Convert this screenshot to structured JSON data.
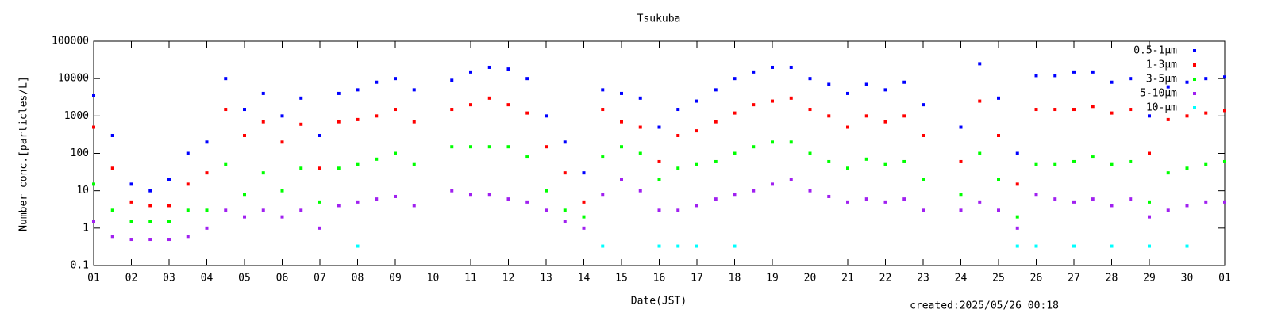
{
  "chart_data": {
    "type": "scatter",
    "title": "Tsukuba",
    "xlabel": "Date(JST)",
    "ylabel": "Number conc.[particles/L]",
    "annotation": "created:2025/05/26 00:18",
    "log_y": true,
    "legend": "upper right",
    "xlim": [
      1,
      31
    ],
    "ylim": [
      0.1,
      100000
    ],
    "xticks": [
      {
        "value": 1,
        "label": "01"
      },
      {
        "value": 2,
        "label": "02"
      },
      {
        "value": 3,
        "label": "03"
      },
      {
        "value": 4,
        "label": "04"
      },
      {
        "value": 5,
        "label": "05"
      },
      {
        "value": 6,
        "label": "06"
      },
      {
        "value": 7,
        "label": "07"
      },
      {
        "value": 8,
        "label": "08"
      },
      {
        "value": 9,
        "label": "09"
      },
      10,
      11,
      12,
      13,
      14,
      15,
      16,
      17,
      18,
      19,
      20,
      21,
      22,
      23,
      24,
      25,
      26,
      27,
      28,
      29,
      30,
      {
        "value": 31,
        "label": "01"
      }
    ],
    "yticks": [
      0.1,
      1,
      10,
      100,
      1000,
      10000,
      100000
    ],
    "x": [
      1,
      1.5,
      2,
      2.5,
      3,
      3.5,
      4,
      4.5,
      5,
      5.5,
      6,
      6.5,
      7,
      7.5,
      8,
      8.5,
      9,
      9.5,
      10,
      10.5,
      11,
      11.5,
      12,
      12.5,
      13,
      13.5,
      14,
      14.5,
      15,
      15.5,
      16,
      16.5,
      17,
      17.5,
      18,
      18.5,
      19,
      19.5,
      20,
      20.5,
      21,
      21.5,
      22,
      22.5,
      23,
      23.5,
      24,
      24.5,
      25,
      25.5,
      26,
      26.5,
      27,
      27.5,
      28,
      28.5,
      29,
      29.5,
      30,
      30.5,
      31
    ],
    "series": [
      {
        "name": "0.5-1μm",
        "color": "#0000ff",
        "values": [
          3500,
          300,
          15,
          10,
          20,
          100,
          200,
          10000,
          1500,
          4000,
          1000,
          3000,
          300,
          4000,
          5000,
          8000,
          10000,
          5000,
          null,
          9000,
          15000,
          20000,
          18000,
          10000,
          1000,
          200,
          30,
          5000,
          4000,
          3000,
          500,
          1500,
          2500,
          5000,
          10000,
          15000,
          20000,
          20000,
          10000,
          7000,
          4000,
          7000,
          5000,
          8000,
          2000,
          null,
          500,
          25000,
          3000,
          100,
          12000,
          12000,
          15000,
          15000,
          8000,
          10000,
          1000,
          6000,
          8000,
          10000,
          11000
        ]
      },
      {
        "name": "1-3μm",
        "color": "#ff0000",
        "values": [
          500,
          40,
          5,
          4,
          4,
          15,
          30,
          1500,
          300,
          700,
          200,
          600,
          40,
          700,
          800,
          1000,
          1500,
          700,
          null,
          1500,
          2000,
          3000,
          2000,
          1200,
          150,
          30,
          5,
          1500,
          700,
          500,
          60,
          300,
          400,
          700,
          1200,
          2000,
          2500,
          3000,
          1500,
          1000,
          500,
          1000,
          700,
          1000,
          300,
          null,
          60,
          2500,
          300,
          15,
          1500,
          1500,
          1500,
          1800,
          1200,
          1500,
          100,
          800,
          1000,
          1200,
          1400
        ]
      },
      {
        "name": "3-5μm",
        "color": "#00ff00",
        "values": [
          15,
          3,
          1.5,
          1.5,
          1.5,
          3,
          3,
          50,
          8,
          30,
          10,
          40,
          5,
          40,
          50,
          70,
          100,
          50,
          null,
          150,
          150,
          150,
          150,
          80,
          10,
          3,
          2,
          80,
          150,
          100,
          20,
          40,
          50,
          60,
          100,
          150,
          200,
          200,
          100,
          60,
          40,
          70,
          50,
          60,
          20,
          null,
          8,
          100,
          20,
          2,
          50,
          50,
          60,
          80,
          50,
          60,
          5,
          30,
          40,
          50,
          60
        ]
      },
      {
        "name": "5-10μm",
        "color": "#a020f0",
        "values": [
          1.5,
          0.6,
          0.5,
          0.5,
          0.5,
          0.6,
          1,
          3,
          2,
          3,
          2,
          3,
          1,
          4,
          5,
          6,
          7,
          4,
          null,
          10,
          8,
          8,
          6,
          5,
          3,
          1.5,
          1,
          8,
          20,
          10,
          3,
          3,
          4,
          6,
          8,
          10,
          15,
          20,
          10,
          7,
          5,
          6,
          5,
          6,
          3,
          null,
          3,
          5,
          3,
          1,
          8,
          6,
          5,
          6,
          4,
          6,
          2,
          3,
          4,
          5,
          5
        ]
      },
      {
        "name": "10-μm",
        "color": "#00ffff",
        "values": [
          null,
          null,
          null,
          null,
          null,
          null,
          null,
          null,
          null,
          null,
          null,
          null,
          null,
          null,
          0.33,
          null,
          null,
          null,
          null,
          null,
          null,
          null,
          null,
          null,
          null,
          null,
          null,
          0.33,
          null,
          null,
          0.33,
          0.33,
          0.33,
          null,
          0.33,
          null,
          null,
          null,
          null,
          null,
          null,
          null,
          null,
          null,
          null,
          null,
          null,
          null,
          null,
          0.33,
          0.33,
          null,
          0.33,
          null,
          0.33,
          null,
          0.33,
          null,
          0.33,
          null,
          null
        ]
      }
    ]
  }
}
